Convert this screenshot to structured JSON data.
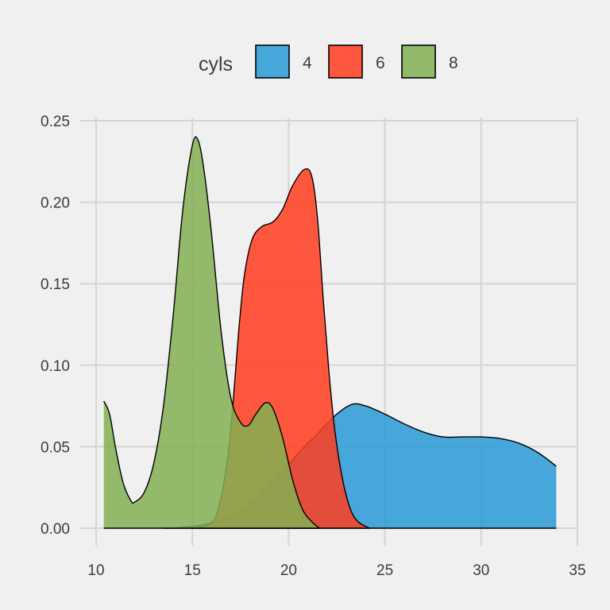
{
  "chart_data": {
    "type": "area",
    "subtype": "density",
    "title": "",
    "xlabel": "",
    "ylabel": "",
    "xlim": [
      10,
      35
    ],
    "ylim": [
      0,
      0.25
    ],
    "x_ticks": [
      10,
      15,
      20,
      25,
      30,
      35
    ],
    "y_ticks": [
      0.0,
      0.05,
      0.1,
      0.15,
      0.2,
      0.25
    ],
    "y_tick_labels": [
      "0.00",
      "0.05",
      "0.10",
      "0.15",
      "0.20",
      "0.25"
    ],
    "grid": true,
    "legend": {
      "title": "cyls",
      "position": "top"
    },
    "series": [
      {
        "name": "4",
        "color": "#2a9ad6",
        "points": [
          [
            13.5,
            0.0
          ],
          [
            14.5,
            0.0005
          ],
          [
            15.5,
            0.002
          ],
          [
            16.5,
            0.005
          ],
          [
            17.5,
            0.01
          ],
          [
            18.5,
            0.02
          ],
          [
            19.5,
            0.032
          ],
          [
            20.5,
            0.046
          ],
          [
            21.5,
            0.058
          ],
          [
            22.5,
            0.07
          ],
          [
            23.3,
            0.076
          ],
          [
            24.0,
            0.075
          ],
          [
            25.0,
            0.07
          ],
          [
            26.0,
            0.064
          ],
          [
            27.0,
            0.059
          ],
          [
            28.0,
            0.056
          ],
          [
            29.0,
            0.056
          ],
          [
            30.0,
            0.056
          ],
          [
            31.0,
            0.055
          ],
          [
            32.0,
            0.052
          ],
          [
            33.0,
            0.046
          ],
          [
            33.9,
            0.038
          ]
        ]
      },
      {
        "name": "6",
        "color": "#ff3d1f",
        "points": [
          [
            15.0,
            0.0
          ],
          [
            15.8,
            0.002
          ],
          [
            16.3,
            0.01
          ],
          [
            16.8,
            0.04
          ],
          [
            17.1,
            0.075
          ],
          [
            17.4,
            0.12
          ],
          [
            17.7,
            0.155
          ],
          [
            18.1,
            0.177
          ],
          [
            18.6,
            0.185
          ],
          [
            19.2,
            0.188
          ],
          [
            19.7,
            0.196
          ],
          [
            20.2,
            0.21
          ],
          [
            20.8,
            0.22
          ],
          [
            21.2,
            0.216
          ],
          [
            21.5,
            0.19
          ],
          [
            21.8,
            0.14
          ],
          [
            22.1,
            0.095
          ],
          [
            22.4,
            0.06
          ],
          [
            22.8,
            0.03
          ],
          [
            23.2,
            0.012
          ],
          [
            23.6,
            0.004
          ],
          [
            24.2,
            0.0
          ]
        ]
      },
      {
        "name": "8",
        "color": "#83b052",
        "points": [
          [
            10.4,
            0.078
          ],
          [
            10.7,
            0.07
          ],
          [
            11.0,
            0.05
          ],
          [
            11.4,
            0.028
          ],
          [
            11.8,
            0.017
          ],
          [
            12.0,
            0.016
          ],
          [
            12.5,
            0.022
          ],
          [
            13.0,
            0.04
          ],
          [
            13.5,
            0.075
          ],
          [
            14.0,
            0.13
          ],
          [
            14.5,
            0.195
          ],
          [
            15.0,
            0.235
          ],
          [
            15.3,
            0.238
          ],
          [
            15.6,
            0.22
          ],
          [
            16.0,
            0.18
          ],
          [
            16.5,
            0.12
          ],
          [
            17.0,
            0.08
          ],
          [
            17.5,
            0.065
          ],
          [
            17.9,
            0.063
          ],
          [
            18.3,
            0.07
          ],
          [
            18.8,
            0.077
          ],
          [
            19.2,
            0.073
          ],
          [
            19.7,
            0.055
          ],
          [
            20.2,
            0.03
          ],
          [
            20.7,
            0.012
          ],
          [
            21.2,
            0.004
          ],
          [
            21.6,
            0.0
          ]
        ]
      }
    ]
  }
}
